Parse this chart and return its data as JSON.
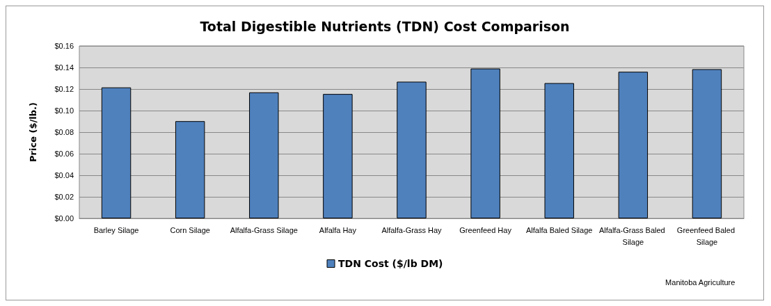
{
  "chart_data": {
    "type": "bar",
    "title": "Total Digestible Nutrients (TDN) Cost Comparison",
    "ylabel": "Price ($/lb.)",
    "categories": [
      "Barley Silage",
      "Corn Silage",
      "Alfalfa-Grass Silage",
      "Alfalfa Hay",
      "Alfalfa-Grass Hay",
      "Greenfeed Hay",
      "Alfalfa Baled Silage",
      "Alfalfa-Grass Baled Silage",
      "Greenfeed Baled Silage"
    ],
    "series": [
      {
        "name": "TDN Cost ($/lb DM)",
        "color": "#4f81bd",
        "values": [
          0.1215,
          0.0902,
          0.1169,
          0.1154,
          0.1268,
          0.139,
          0.1255,
          0.136,
          0.1384
        ]
      }
    ],
    "ylim": [
      0,
      0.16
    ],
    "yticks": [
      {
        "value": 0,
        "label": "$0.00"
      },
      {
        "value": 0.02,
        "label": "$0.02"
      },
      {
        "value": 0.04,
        "label": "$0.04"
      },
      {
        "value": 0.06,
        "label": "$0.06"
      },
      {
        "value": 0.08,
        "label": "$0.08"
      },
      {
        "value": 0.1,
        "label": "$0.10"
      },
      {
        "value": 0.12,
        "label": "$0.12"
      },
      {
        "value": 0.14,
        "label": "$0.14"
      },
      {
        "value": 0.16,
        "label": "$0.16"
      }
    ],
    "grid": true,
    "legend": "bottom",
    "annotations": [
      "Manitoba Agriculture"
    ]
  }
}
